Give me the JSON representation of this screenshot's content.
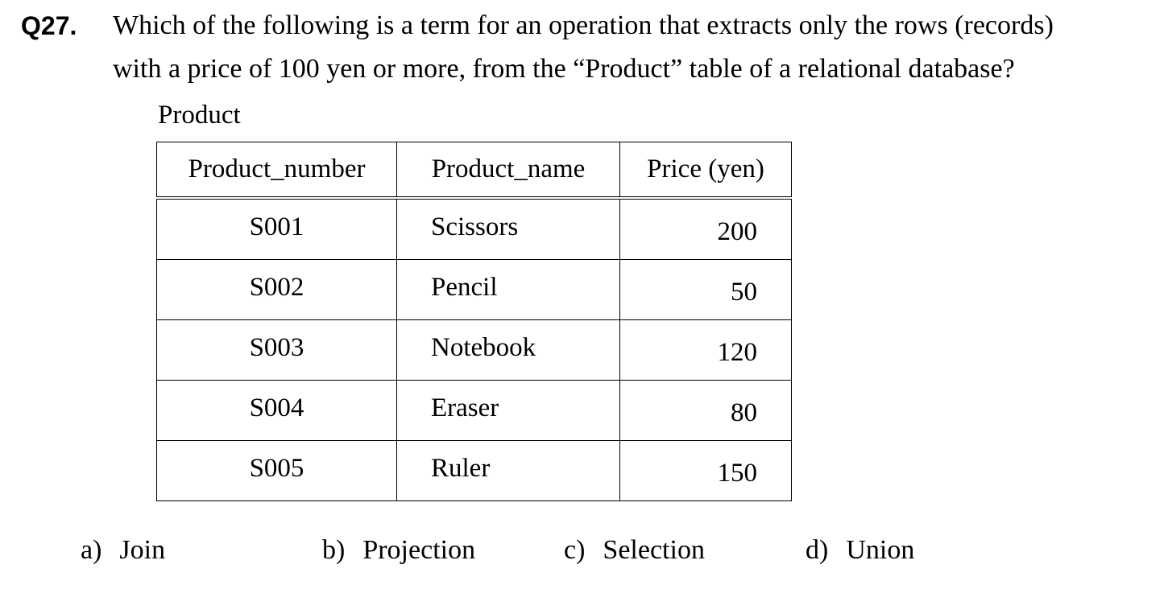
{
  "question": {
    "number": "Q27.",
    "line1": "Which of the following is a term for an operation that extracts only the rows (records)",
    "line2": "with a price of 100 yen or more, from the “Product” table of a relational database?"
  },
  "table": {
    "caption": "Product",
    "headers": [
      "Product_number",
      "Product_name",
      "Price (yen)"
    ],
    "rows": [
      [
        "S001",
        "Scissors",
        "200"
      ],
      [
        "S002",
        "Pencil",
        "50"
      ],
      [
        "S003",
        "Notebook",
        "120"
      ],
      [
        "S004",
        "Eraser",
        "80"
      ],
      [
        "S005",
        "Ruler",
        "150"
      ]
    ]
  },
  "options": [
    {
      "letter": "a)",
      "text": "Join"
    },
    {
      "letter": "b)",
      "text": "Projection"
    },
    {
      "letter": "c)",
      "text": "Selection"
    },
    {
      "letter": "d)",
      "text": "Union"
    }
  ]
}
